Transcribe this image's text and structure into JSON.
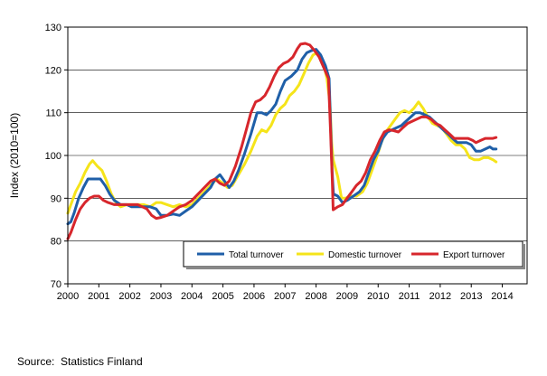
{
  "source": "Source:  Statistics Finland",
  "chart_data": {
    "type": "line",
    "title": "",
    "xlabel": "",
    "ylabel": "Index (2010=100)",
    "ylim": [
      70,
      130
    ],
    "xlim": [
      2000.0,
      2014.8
    ],
    "yticks": [
      70,
      80,
      90,
      100,
      110,
      120,
      130
    ],
    "xticks": [
      "2000",
      "2001",
      "2002",
      "2003",
      "2004",
      "2005",
      "2006",
      "2007",
      "2008",
      "2009",
      "2010",
      "2011",
      "2012",
      "2013",
      "2014"
    ],
    "grid": "horizontal",
    "legend_position": "bottom-right",
    "series": [
      {
        "name": "Total turnover",
        "color": "#1f5fa8",
        "points": [
          [
            2000.0,
            84
          ],
          [
            2000.1,
            84.5
          ],
          [
            2000.2,
            86.5
          ],
          [
            2000.35,
            90
          ],
          [
            2000.5,
            92.5
          ],
          [
            2000.65,
            94.5
          ],
          [
            2000.85,
            94.5
          ],
          [
            2001.05,
            94.5
          ],
          [
            2001.2,
            93
          ],
          [
            2001.35,
            91
          ],
          [
            2001.5,
            89.5
          ],
          [
            2001.7,
            88.5
          ],
          [
            2001.9,
            88.5
          ],
          [
            2002.05,
            88
          ],
          [
            2002.25,
            88
          ],
          [
            2002.45,
            88
          ],
          [
            2002.65,
            88
          ],
          [
            2002.85,
            87.5
          ],
          [
            2003.0,
            86
          ],
          [
            2003.2,
            86
          ],
          [
            2003.4,
            86.3
          ],
          [
            2003.6,
            86
          ],
          [
            2003.8,
            87
          ],
          [
            2004.0,
            88
          ],
          [
            2004.2,
            89.5
          ],
          [
            2004.4,
            91
          ],
          [
            2004.6,
            92.5
          ],
          [
            2004.75,
            94.5
          ],
          [
            2004.9,
            95.5
          ],
          [
            2005.05,
            94
          ],
          [
            2005.2,
            92.5
          ],
          [
            2005.35,
            94
          ],
          [
            2005.5,
            96.5
          ],
          [
            2005.7,
            100.5
          ],
          [
            2005.9,
            105
          ],
          [
            2006.1,
            110
          ],
          [
            2006.25,
            110
          ],
          [
            2006.4,
            109.5
          ],
          [
            2006.55,
            110.5
          ],
          [
            2006.7,
            112
          ],
          [
            2006.85,
            115
          ],
          [
            2007.0,
            117.5
          ],
          [
            2007.2,
            118.5
          ],
          [
            2007.4,
            120
          ],
          [
            2007.55,
            122.5
          ],
          [
            2007.7,
            124
          ],
          [
            2007.85,
            124.5
          ],
          [
            2008.0,
            124.8
          ],
          [
            2008.15,
            123.5
          ],
          [
            2008.3,
            121
          ],
          [
            2008.42,
            118
          ],
          [
            2008.47,
            107
          ],
          [
            2008.52,
            96
          ],
          [
            2008.56,
            91
          ],
          [
            2008.7,
            90.5
          ],
          [
            2008.85,
            89
          ],
          [
            2009.0,
            89.5
          ],
          [
            2009.2,
            90.5
          ],
          [
            2009.4,
            91.5
          ],
          [
            2009.55,
            93
          ],
          [
            2009.7,
            96
          ],
          [
            2009.85,
            99
          ],
          [
            2010.0,
            101
          ],
          [
            2010.15,
            104
          ],
          [
            2010.3,
            105.5
          ],
          [
            2010.45,
            106
          ],
          [
            2010.6,
            106.5
          ],
          [
            2010.75,
            107
          ],
          [
            2010.9,
            108
          ],
          [
            2011.05,
            109
          ],
          [
            2011.2,
            110
          ],
          [
            2011.35,
            110
          ],
          [
            2011.5,
            109.5
          ],
          [
            2011.65,
            109
          ],
          [
            2011.8,
            108
          ],
          [
            2011.95,
            107
          ],
          [
            2012.1,
            106
          ],
          [
            2012.25,
            105
          ],
          [
            2012.4,
            104
          ],
          [
            2012.55,
            103
          ],
          [
            2012.7,
            103
          ],
          [
            2012.85,
            103
          ],
          [
            2013.0,
            102.5
          ],
          [
            2013.15,
            101
          ],
          [
            2013.3,
            101
          ],
          [
            2013.45,
            101.5
          ],
          [
            2013.6,
            102
          ],
          [
            2013.7,
            101.5
          ],
          [
            2013.8,
            101.5
          ]
        ]
      },
      {
        "name": "Domestic turnover",
        "color": "#f5e41a",
        "points": [
          [
            2000.0,
            86.5
          ],
          [
            2000.1,
            88.5
          ],
          [
            2000.25,
            91.5
          ],
          [
            2000.4,
            93.5
          ],
          [
            2000.55,
            96
          ],
          [
            2000.7,
            98
          ],
          [
            2000.8,
            98.8
          ],
          [
            2000.95,
            97.5
          ],
          [
            2001.1,
            96.5
          ],
          [
            2001.25,
            94
          ],
          [
            2001.4,
            91
          ],
          [
            2001.55,
            89
          ],
          [
            2001.7,
            88
          ],
          [
            2001.9,
            88.5
          ],
          [
            2002.05,
            88.5
          ],
          [
            2002.25,
            88.5
          ],
          [
            2002.45,
            88.5
          ],
          [
            2002.65,
            88
          ],
          [
            2002.85,
            89
          ],
          [
            2003.0,
            89
          ],
          [
            2003.2,
            88.5
          ],
          [
            2003.4,
            88
          ],
          [
            2003.6,
            88.5
          ],
          [
            2003.8,
            88
          ],
          [
            2004.0,
            88.5
          ],
          [
            2004.2,
            90
          ],
          [
            2004.4,
            91.5
          ],
          [
            2004.6,
            93
          ],
          [
            2004.8,
            94.5
          ],
          [
            2005.0,
            93.5
          ],
          [
            2005.15,
            92.5
          ],
          [
            2005.3,
            93
          ],
          [
            2005.5,
            95.5
          ],
          [
            2005.7,
            98
          ],
          [
            2005.9,
            101
          ],
          [
            2006.1,
            104.5
          ],
          [
            2006.25,
            106
          ],
          [
            2006.4,
            105.5
          ],
          [
            2006.55,
            107
          ],
          [
            2006.7,
            109.5
          ],
          [
            2006.85,
            111
          ],
          [
            2007.0,
            112
          ],
          [
            2007.15,
            114
          ],
          [
            2007.3,
            115
          ],
          [
            2007.45,
            116.5
          ],
          [
            2007.6,
            119
          ],
          [
            2007.75,
            121.5
          ],
          [
            2007.9,
            123.5
          ],
          [
            2008.05,
            124
          ],
          [
            2008.2,
            122.5
          ],
          [
            2008.35,
            118
          ],
          [
            2008.45,
            112
          ],
          [
            2008.5,
            103
          ],
          [
            2008.55,
            99
          ],
          [
            2008.7,
            95
          ],
          [
            2008.82,
            90
          ],
          [
            2008.95,
            90
          ],
          [
            2009.1,
            90.5
          ],
          [
            2009.3,
            90.5
          ],
          [
            2009.5,
            91.5
          ],
          [
            2009.65,
            93.5
          ],
          [
            2009.8,
            96.5
          ],
          [
            2009.95,
            99.5
          ],
          [
            2010.1,
            103
          ],
          [
            2010.25,
            105.5
          ],
          [
            2010.4,
            107
          ],
          [
            2010.55,
            108.5
          ],
          [
            2010.7,
            110
          ],
          [
            2010.85,
            110.5
          ],
          [
            2011.0,
            110
          ],
          [
            2011.15,
            111
          ],
          [
            2011.3,
            112.5
          ],
          [
            2011.45,
            111
          ],
          [
            2011.6,
            109
          ],
          [
            2011.75,
            107.5
          ],
          [
            2011.9,
            107
          ],
          [
            2012.05,
            106.5
          ],
          [
            2012.2,
            105
          ],
          [
            2012.35,
            103.5
          ],
          [
            2012.5,
            102.5
          ],
          [
            2012.65,
            102.5
          ],
          [
            2012.8,
            101.5
          ],
          [
            2012.95,
            99.5
          ],
          [
            2013.1,
            99
          ],
          [
            2013.25,
            99
          ],
          [
            2013.4,
            99.5
          ],
          [
            2013.55,
            99.5
          ],
          [
            2013.7,
            99
          ],
          [
            2013.8,
            98.5
          ]
        ]
      },
      {
        "name": "Export turnover",
        "color": "#d7262c",
        "points": [
          [
            2000.0,
            80.5
          ],
          [
            2000.1,
            82
          ],
          [
            2000.25,
            85
          ],
          [
            2000.4,
            87.5
          ],
          [
            2000.55,
            89
          ],
          [
            2000.7,
            90
          ],
          [
            2000.85,
            90.5
          ],
          [
            2001.0,
            90.5
          ],
          [
            2001.15,
            89.5
          ],
          [
            2001.3,
            89
          ],
          [
            2001.5,
            88.5
          ],
          [
            2001.7,
            88.5
          ],
          [
            2001.9,
            88.5
          ],
          [
            2002.05,
            88.5
          ],
          [
            2002.25,
            88.5
          ],
          [
            2002.4,
            88
          ],
          [
            2002.55,
            87.5
          ],
          [
            2002.7,
            86
          ],
          [
            2002.85,
            85.3
          ],
          [
            2003.0,
            85.5
          ],
          [
            2003.2,
            86
          ],
          [
            2003.4,
            87
          ],
          [
            2003.6,
            88
          ],
          [
            2003.8,
            88.5
          ],
          [
            2004.0,
            89.5
          ],
          [
            2004.2,
            91
          ],
          [
            2004.4,
            92.5
          ],
          [
            2004.6,
            94
          ],
          [
            2004.75,
            94.5
          ],
          [
            2004.9,
            93.5
          ],
          [
            2005.05,
            93
          ],
          [
            2005.2,
            94
          ],
          [
            2005.4,
            97.5
          ],
          [
            2005.6,
            102
          ],
          [
            2005.75,
            106
          ],
          [
            2005.9,
            110
          ],
          [
            2006.05,
            112.5
          ],
          [
            2006.2,
            113
          ],
          [
            2006.35,
            114
          ],
          [
            2006.5,
            116
          ],
          [
            2006.65,
            118.5
          ],
          [
            2006.8,
            120.5
          ],
          [
            2006.95,
            121.5
          ],
          [
            2007.1,
            122
          ],
          [
            2007.25,
            123
          ],
          [
            2007.4,
            125
          ],
          [
            2007.5,
            126
          ],
          [
            2007.65,
            126.2
          ],
          [
            2007.8,
            125.8
          ],
          [
            2007.95,
            124.5
          ],
          [
            2008.1,
            123
          ],
          [
            2008.25,
            120.5
          ],
          [
            2008.4,
            118
          ],
          [
            2008.47,
            105
          ],
          [
            2008.52,
            95
          ],
          [
            2008.55,
            87.3
          ],
          [
            2008.7,
            88
          ],
          [
            2008.85,
            88.5
          ],
          [
            2009.0,
            90
          ],
          [
            2009.15,
            91.5
          ],
          [
            2009.3,
            93
          ],
          [
            2009.45,
            94
          ],
          [
            2009.6,
            96
          ],
          [
            2009.75,
            99
          ],
          [
            2009.9,
            101
          ],
          [
            2010.05,
            103.5
          ],
          [
            2010.2,
            105.5
          ],
          [
            2010.35,
            106
          ],
          [
            2010.5,
            105.8
          ],
          [
            2010.65,
            105.5
          ],
          [
            2010.8,
            106.5
          ],
          [
            2010.95,
            107.5
          ],
          [
            2011.1,
            108
          ],
          [
            2011.25,
            108.5
          ],
          [
            2011.4,
            109
          ],
          [
            2011.55,
            109
          ],
          [
            2011.7,
            108.5
          ],
          [
            2011.85,
            107.5
          ],
          [
            2012.0,
            107
          ],
          [
            2012.15,
            106
          ],
          [
            2012.3,
            105
          ],
          [
            2012.45,
            104
          ],
          [
            2012.6,
            104
          ],
          [
            2012.75,
            104
          ],
          [
            2012.9,
            104
          ],
          [
            2013.05,
            103.5
          ],
          [
            2013.15,
            103
          ],
          [
            2013.3,
            103.5
          ],
          [
            2013.45,
            104
          ],
          [
            2013.6,
            104
          ],
          [
            2013.7,
            104
          ],
          [
            2013.8,
            104.2
          ]
        ]
      }
    ]
  }
}
